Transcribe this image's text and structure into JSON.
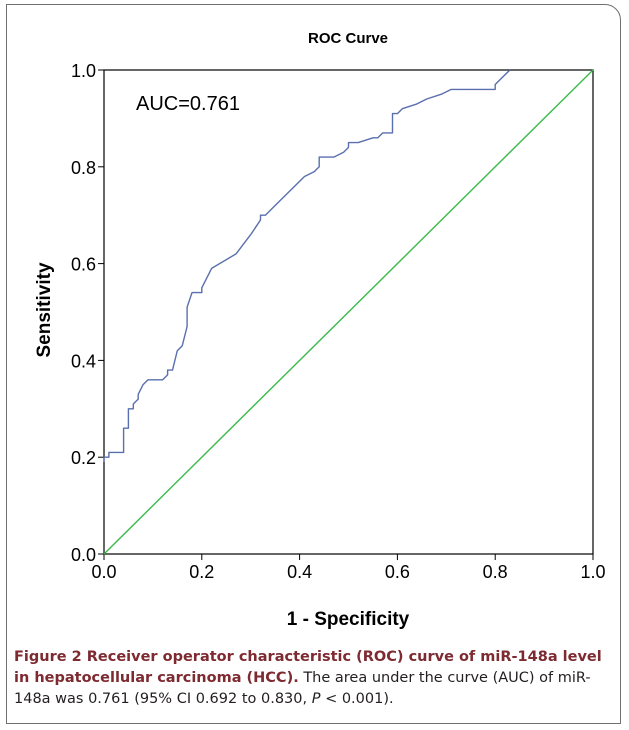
{
  "chart_data": {
    "type": "line",
    "title": "ROC Curve",
    "xlabel": "1 - Specificity",
    "ylabel": "Sensitivity",
    "xlim": [
      0.0,
      1.0
    ],
    "ylim": [
      0.0,
      1.0
    ],
    "x_ticks": [
      "0.0",
      "0.2",
      "0.4",
      "0.6",
      "0.8",
      "1.0"
    ],
    "y_ticks": [
      "0.0",
      "0.2",
      "0.4",
      "0.6",
      "0.8",
      "1.0"
    ],
    "grid": false,
    "annotation": "AUC=0.761",
    "colors": {
      "roc": "#5a6fae",
      "reference": "#3bba4c"
    },
    "series": [
      {
        "name": "",
        "role": "roc",
        "x": [
          0.0,
          0.0,
          0.01,
          0.01,
          0.04,
          0.04,
          0.05,
          0.05,
          0.06,
          0.06,
          0.07,
          0.07,
          0.08,
          0.09,
          0.12,
          0.13,
          0.13,
          0.14,
          0.15,
          0.16,
          0.17,
          0.17,
          0.18,
          0.18,
          0.2,
          0.2,
          0.22,
          0.27,
          0.3,
          0.32,
          0.32,
          0.33,
          0.35,
          0.38,
          0.41,
          0.43,
          0.44,
          0.44,
          0.47,
          0.49,
          0.5,
          0.5,
          0.51,
          0.52,
          0.55,
          0.56,
          0.57,
          0.59,
          0.59,
          0.6,
          0.61,
          0.64,
          0.66,
          0.69,
          0.71,
          0.72,
          0.73,
          0.77,
          0.79,
          0.8,
          0.8,
          0.82,
          0.83
        ],
        "y": [
          0.19,
          0.2,
          0.2,
          0.21,
          0.21,
          0.26,
          0.26,
          0.3,
          0.3,
          0.31,
          0.32,
          0.33,
          0.35,
          0.36,
          0.36,
          0.37,
          0.38,
          0.38,
          0.42,
          0.43,
          0.47,
          0.51,
          0.54,
          0.54,
          0.54,
          0.55,
          0.59,
          0.62,
          0.66,
          0.69,
          0.7,
          0.7,
          0.72,
          0.75,
          0.78,
          0.79,
          0.8,
          0.82,
          0.82,
          0.83,
          0.84,
          0.85,
          0.85,
          0.85,
          0.86,
          0.86,
          0.87,
          0.87,
          0.91,
          0.91,
          0.92,
          0.93,
          0.94,
          0.95,
          0.96,
          0.96,
          0.96,
          0.96,
          0.96,
          0.96,
          0.97,
          0.99,
          1.0
        ]
      },
      {
        "name": "",
        "role": "reference",
        "x": [
          0.0,
          1.0
        ],
        "y": [
          0.0,
          1.0
        ]
      }
    ]
  },
  "caption": {
    "label": "Figure 2 Receiver operator characteristic (ROC) curve of miR-148a level in hepatocellular carcinoma (HCC).",
    "text_1": " The area under the curve (AUC) of miR-148a was 0.761 (95% CI 0.692 to 0.830, ",
    "p_symbol": "P",
    "text_2": " < 0.001)."
  }
}
